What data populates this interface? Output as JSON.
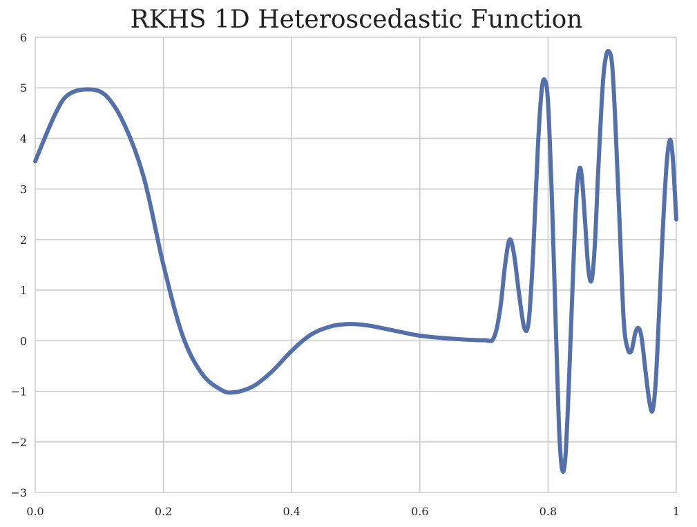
{
  "chart_data": {
    "type": "line",
    "title": "RKHS 1D Heteroscedastic Function",
    "xlabel": "",
    "ylabel": "",
    "xlim": [
      0,
      1
    ],
    "ylim": [
      -3,
      6
    ],
    "grid": true,
    "x_ticks": [
      {
        "value": 0.0,
        "label": "0.0"
      },
      {
        "value": 0.2,
        "label": "0.2"
      },
      {
        "value": 0.4,
        "label": "0.4"
      },
      {
        "value": 0.6,
        "label": "0.6"
      },
      {
        "value": 0.8,
        "label": "0.8"
      },
      {
        "value": 1.0,
        "label": "1"
      }
    ],
    "y_ticks": [
      {
        "value": -3,
        "label": "−3"
      },
      {
        "value": -2,
        "label": "−2"
      },
      {
        "value": -1,
        "label": "−1"
      },
      {
        "value": 0,
        "label": "0"
      },
      {
        "value": 1,
        "label": "1"
      },
      {
        "value": 2,
        "label": "2"
      },
      {
        "value": 3,
        "label": "3"
      },
      {
        "value": 4,
        "label": "4"
      },
      {
        "value": 5,
        "label": "5"
      },
      {
        "value": 6,
        "label": "6"
      }
    ],
    "series": [
      {
        "color": "#5470ab",
        "points": [
          [
            0.0,
            3.55
          ],
          [
            0.03,
            4.45
          ],
          [
            0.05,
            4.85
          ],
          [
            0.08,
            4.97
          ],
          [
            0.11,
            4.85
          ],
          [
            0.14,
            4.25
          ],
          [
            0.17,
            3.2
          ],
          [
            0.2,
            1.5
          ],
          [
            0.23,
            0.1
          ],
          [
            0.26,
            -0.65
          ],
          [
            0.29,
            -0.97
          ],
          [
            0.31,
            -1.02
          ],
          [
            0.34,
            -0.9
          ],
          [
            0.37,
            -0.6
          ],
          [
            0.4,
            -0.2
          ],
          [
            0.43,
            0.12
          ],
          [
            0.46,
            0.28
          ],
          [
            0.49,
            0.33
          ],
          [
            0.52,
            0.3
          ],
          [
            0.56,
            0.2
          ],
          [
            0.6,
            0.1
          ],
          [
            0.65,
            0.04
          ],
          [
            0.7,
            0.01
          ],
          [
            0.715,
            0.05
          ],
          [
            0.725,
            0.6
          ],
          [
            0.733,
            1.5
          ],
          [
            0.74,
            2.0
          ],
          [
            0.747,
            1.7
          ],
          [
            0.755,
            0.9
          ],
          [
            0.763,
            0.25
          ],
          [
            0.77,
            0.4
          ],
          [
            0.777,
            1.8
          ],
          [
            0.784,
            3.8
          ],
          [
            0.79,
            4.95
          ],
          [
            0.795,
            5.15
          ],
          [
            0.8,
            4.7
          ],
          [
            0.806,
            2.8
          ],
          [
            0.812,
            0.3
          ],
          [
            0.817,
            -1.7
          ],
          [
            0.822,
            -2.55
          ],
          [
            0.827,
            -2.3
          ],
          [
            0.832,
            -1.0
          ],
          [
            0.838,
            1.0
          ],
          [
            0.844,
            2.8
          ],
          [
            0.849,
            3.4
          ],
          [
            0.853,
            3.2
          ],
          [
            0.858,
            2.3
          ],
          [
            0.863,
            1.4
          ],
          [
            0.868,
            1.2
          ],
          [
            0.873,
            1.9
          ],
          [
            0.878,
            3.3
          ],
          [
            0.885,
            5.0
          ],
          [
            0.89,
            5.6
          ],
          [
            0.895,
            5.72
          ],
          [
            0.9,
            5.45
          ],
          [
            0.905,
            4.3
          ],
          [
            0.912,
            2.2
          ],
          [
            0.918,
            0.4
          ],
          [
            0.924,
            -0.15
          ],
          [
            0.93,
            -0.2
          ],
          [
            0.936,
            0.15
          ],
          [
            0.941,
            0.25
          ],
          [
            0.946,
            0.05
          ],
          [
            0.952,
            -0.6
          ],
          [
            0.958,
            -1.2
          ],
          [
            0.963,
            -1.38
          ],
          [
            0.968,
            -0.8
          ],
          [
            0.973,
            0.5
          ],
          [
            0.979,
            2.2
          ],
          [
            0.985,
            3.5
          ],
          [
            0.99,
            3.97
          ],
          [
            0.994,
            3.7
          ],
          [
            0.997,
            3.1
          ],
          [
            1.0,
            2.4
          ]
        ]
      }
    ]
  }
}
